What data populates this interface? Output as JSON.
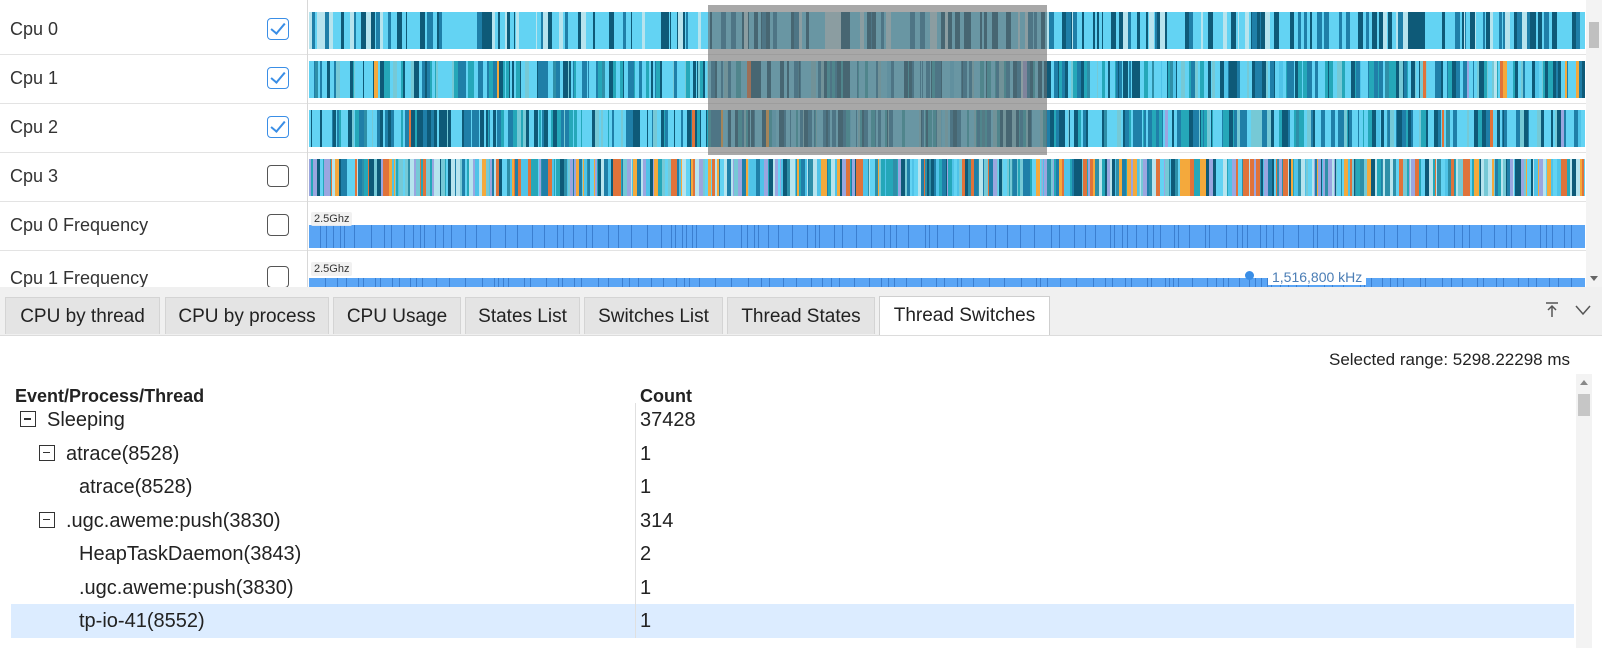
{
  "trace": {
    "rows": [
      {
        "label": "Cpu 0",
        "checked": true
      },
      {
        "label": "Cpu 1",
        "checked": true
      },
      {
        "label": "Cpu 2",
        "checked": true
      },
      {
        "label": "Cpu 3",
        "checked": false
      },
      {
        "label": "Cpu 0 Frequency",
        "checked": false
      },
      {
        "label": "Cpu 1 Frequency",
        "checked": false
      }
    ],
    "freq_scale_label": "2.5Ghz",
    "freq_readout": "1,516,800 kHz",
    "colors": {
      "cpu_palette": [
        "#63d3f3",
        "#4fc3e8",
        "#1f7fa8",
        "#0e5a78",
        "#25a7b9",
        "#2e8fa8",
        "#76c9d6",
        "#f4a93c",
        "#e0733a",
        "#9aa6e0",
        "#b7e4ee"
      ],
      "freq_bar": "#5aa5f5",
      "accent": "#3a8ee6"
    }
  },
  "tabs": [
    {
      "label": "CPU by thread",
      "active": false
    },
    {
      "label": "CPU by process",
      "active": false
    },
    {
      "label": "CPU Usage",
      "active": false
    },
    {
      "label": "States List",
      "active": false
    },
    {
      "label": "Switches List",
      "active": false
    },
    {
      "label": "Thread States",
      "active": false
    },
    {
      "label": "Thread Switches",
      "active": true
    }
  ],
  "panel": {
    "selected_range": "Selected range: 5298.22298 ms",
    "columns": {
      "name": "Event/Process/Thread",
      "count": "Count"
    },
    "rows": [
      {
        "name": "Sleeping",
        "count": "37428",
        "level": 0,
        "expanded": true,
        "selected": false
      },
      {
        "name": "atrace(8528)",
        "count": "1",
        "level": 1,
        "expanded": true,
        "selected": false
      },
      {
        "name": "atrace(8528)",
        "count": "1",
        "level": 2,
        "expanded": null,
        "selected": false
      },
      {
        "name": ".ugc.aweme:push(3830)",
        "count": "314",
        "level": 1,
        "expanded": true,
        "selected": false
      },
      {
        "name": "HeapTaskDaemon(3843)",
        "count": "2",
        "level": 2,
        "expanded": null,
        "selected": false
      },
      {
        "name": ".ugc.aweme:push(3830)",
        "count": "1",
        "level": 2,
        "expanded": null,
        "selected": false
      },
      {
        "name": "tp-io-41(8552)",
        "count": "1",
        "level": 2,
        "expanded": null,
        "selected": true
      }
    ]
  }
}
